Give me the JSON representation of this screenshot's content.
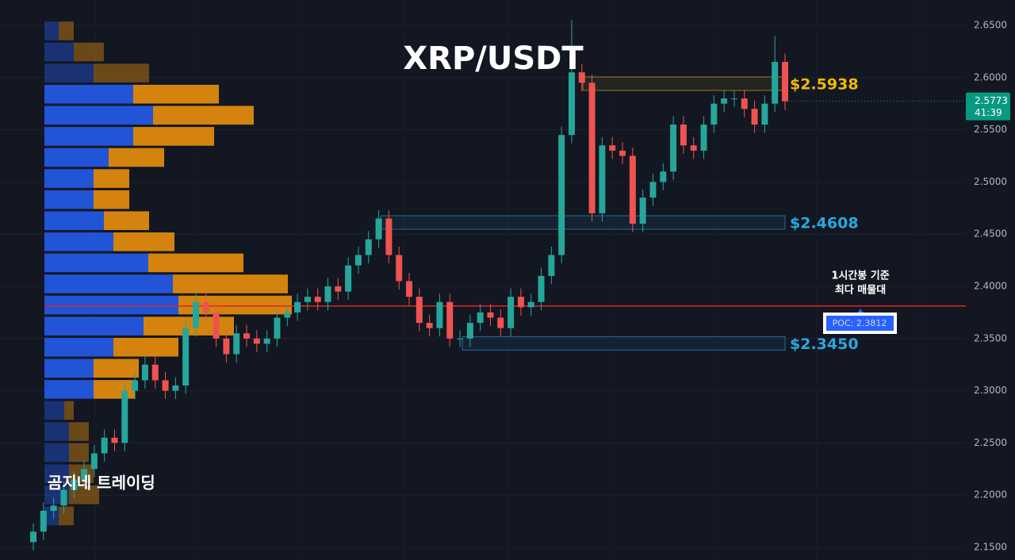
{
  "chart_data": {
    "type": "candlestick",
    "title": "XRP/USDT",
    "watermark": "곰지네 트레이딩",
    "up_color": "#26a69a",
    "down_color": "#ef5350",
    "ylim": [
      2.15,
      2.65
    ],
    "yticks": [
      {
        "value": 2.65,
        "label": "2.6500"
      },
      {
        "value": 2.6,
        "label": "2.6000"
      },
      {
        "value": 2.55,
        "label": "2.5500"
      },
      {
        "value": 2.5,
        "label": "2.5000"
      },
      {
        "value": 2.45,
        "label": "2.4500"
      },
      {
        "value": 2.4,
        "label": "2.4000"
      },
      {
        "value": 2.35,
        "label": "2.3500"
      },
      {
        "value": 2.3,
        "label": "2.3000"
      },
      {
        "value": 2.25,
        "label": "2.2500"
      },
      {
        "value": 2.2,
        "label": "2.2000"
      },
      {
        "value": 2.15,
        "label": "2.1500"
      }
    ],
    "open": [
      2.155,
      2.165,
      2.185,
      2.19,
      2.205,
      2.215,
      2.225,
      2.24,
      2.255,
      2.25,
      2.3,
      2.31,
      2.325,
      2.31,
      2.3,
      2.305,
      2.36,
      2.385,
      2.375,
      2.35,
      2.335,
      2.355,
      2.35,
      2.345,
      2.35,
      2.37,
      2.375,
      2.385,
      2.39,
      2.385,
      2.4,
      2.395,
      2.42,
      2.43,
      2.445,
      2.465,
      2.43,
      2.405,
      2.39,
      2.365,
      2.36,
      2.385,
      2.35,
      2.35,
      2.365,
      2.375,
      2.37,
      2.36,
      2.39,
      2.38,
      2.385,
      2.41,
      2.43,
      2.545,
      2.605,
      2.595,
      2.47,
      2.535,
      2.53,
      2.525,
      2.46,
      2.485,
      2.5,
      2.51,
      2.555,
      2.535,
      2.53,
      2.555,
      2.575,
      2.58,
      2.58,
      2.57,
      2.555,
      2.575,
      2.615
    ],
    "high": [
      2.173,
      2.193,
      2.198,
      2.213,
      2.223,
      2.233,
      2.248,
      2.263,
      2.263,
      2.308,
      2.318,
      2.333,
      2.333,
      2.318,
      2.313,
      2.368,
      2.393,
      2.393,
      2.383,
      2.358,
      2.363,
      2.363,
      2.358,
      2.358,
      2.378,
      2.383,
      2.393,
      2.398,
      2.398,
      2.408,
      2.408,
      2.428,
      2.438,
      2.453,
      2.473,
      2.473,
      2.438,
      2.413,
      2.398,
      2.373,
      2.393,
      2.393,
      2.358,
      2.373,
      2.383,
      2.383,
      2.378,
      2.398,
      2.398,
      2.393,
      2.418,
      2.438,
      2.553,
      2.655,
      2.613,
      2.603,
      2.543,
      2.543,
      2.538,
      2.533,
      2.493,
      2.508,
      2.518,
      2.563,
      2.563,
      2.543,
      2.563,
      2.583,
      2.588,
      2.588,
      2.588,
      2.578,
      2.583,
      2.64,
      2.623
    ],
    "low": [
      2.147,
      2.157,
      2.177,
      2.182,
      2.197,
      2.207,
      2.217,
      2.232,
      2.242,
      2.242,
      2.292,
      2.302,
      2.302,
      2.292,
      2.292,
      2.297,
      2.352,
      2.367,
      2.342,
      2.327,
      2.327,
      2.342,
      2.337,
      2.337,
      2.342,
      2.362,
      2.367,
      2.377,
      2.377,
      2.377,
      2.387,
      2.387,
      2.412,
      2.422,
      2.437,
      2.422,
      2.397,
      2.382,
      2.357,
      2.352,
      2.352,
      2.342,
      2.342,
      2.342,
      2.357,
      2.362,
      2.352,
      2.352,
      2.372,
      2.372,
      2.377,
      2.402,
      2.422,
      2.537,
      2.587,
      2.462,
      2.462,
      2.522,
      2.517,
      2.452,
      2.452,
      2.477,
      2.492,
      2.502,
      2.527,
      2.522,
      2.522,
      2.547,
      2.567,
      2.572,
      2.562,
      2.547,
      2.547,
      2.567,
      2.569
    ],
    "close": [
      2.165,
      2.185,
      2.19,
      2.205,
      2.215,
      2.225,
      2.24,
      2.255,
      2.25,
      2.3,
      2.31,
      2.325,
      2.31,
      2.3,
      2.305,
      2.36,
      2.385,
      2.375,
      2.35,
      2.335,
      2.355,
      2.35,
      2.345,
      2.35,
      2.37,
      2.375,
      2.385,
      2.39,
      2.385,
      2.4,
      2.395,
      2.42,
      2.43,
      2.445,
      2.465,
      2.43,
      2.405,
      2.39,
      2.365,
      2.36,
      2.385,
      2.35,
      2.35,
      2.365,
      2.375,
      2.37,
      2.36,
      2.39,
      2.38,
      2.385,
      2.41,
      2.43,
      2.545,
      2.605,
      2.595,
      2.47,
      2.535,
      2.53,
      2.525,
      2.46,
      2.485,
      2.5,
      2.51,
      2.555,
      2.535,
      2.53,
      2.555,
      2.575,
      2.58,
      2.58,
      2.57,
      2.555,
      2.575,
      2.615,
      2.5773
    ],
    "volume_profile": {
      "bins": [
        2.17,
        2.1902,
        2.2104,
        2.2306,
        2.2508,
        2.271,
        2.2912,
        2.3114,
        2.3316,
        2.3518,
        2.372,
        2.3922,
        2.4124,
        2.4326,
        2.4528,
        2.473,
        2.4932,
        2.5134,
        2.5336,
        2.5538,
        2.574,
        2.5942,
        2.6144,
        2.6346,
        2.6548
      ],
      "buy": [
        18,
        31,
        31,
        31,
        31,
        25,
        62,
        62,
        87,
        125,
        169,
        162,
        131,
        87,
        75,
        62,
        62,
        81,
        112,
        137,
        112,
        62,
        37,
        18
      ],
      "sell": [
        19,
        38,
        31,
        25,
        25,
        12,
        52,
        57,
        82,
        114,
        143,
        145,
        120,
        77,
        57,
        45,
        45,
        70,
        102,
        127,
        108,
        70,
        38,
        19
      ],
      "value_area": [
        2.2912,
        2.5942
      ],
      "buy_color": "#2154d6",
      "sell_color": "#d4840e"
    },
    "zones": [
      {
        "price": {
          "value": 2.5938,
          "label": "$2.5938"
        },
        "color": "#f0b90b"
      },
      {
        "price": {
          "value": 2.4608,
          "label": "$2.4608"
        },
        "color": "#29a8e0"
      },
      {
        "price": {
          "value": 2.345,
          "label": "$2.3450"
        },
        "color": "#29a8e0"
      }
    ],
    "poc": {
      "value": 2.3812,
      "label": "POC: 2.3812",
      "color": "#e02424"
    },
    "poc_note": [
      "1시간봉 기준",
      "최다 매물대"
    ],
    "last_price": {
      "value": 2.5773,
      "label": "2.5773"
    },
    "countdown": "41:39"
  }
}
